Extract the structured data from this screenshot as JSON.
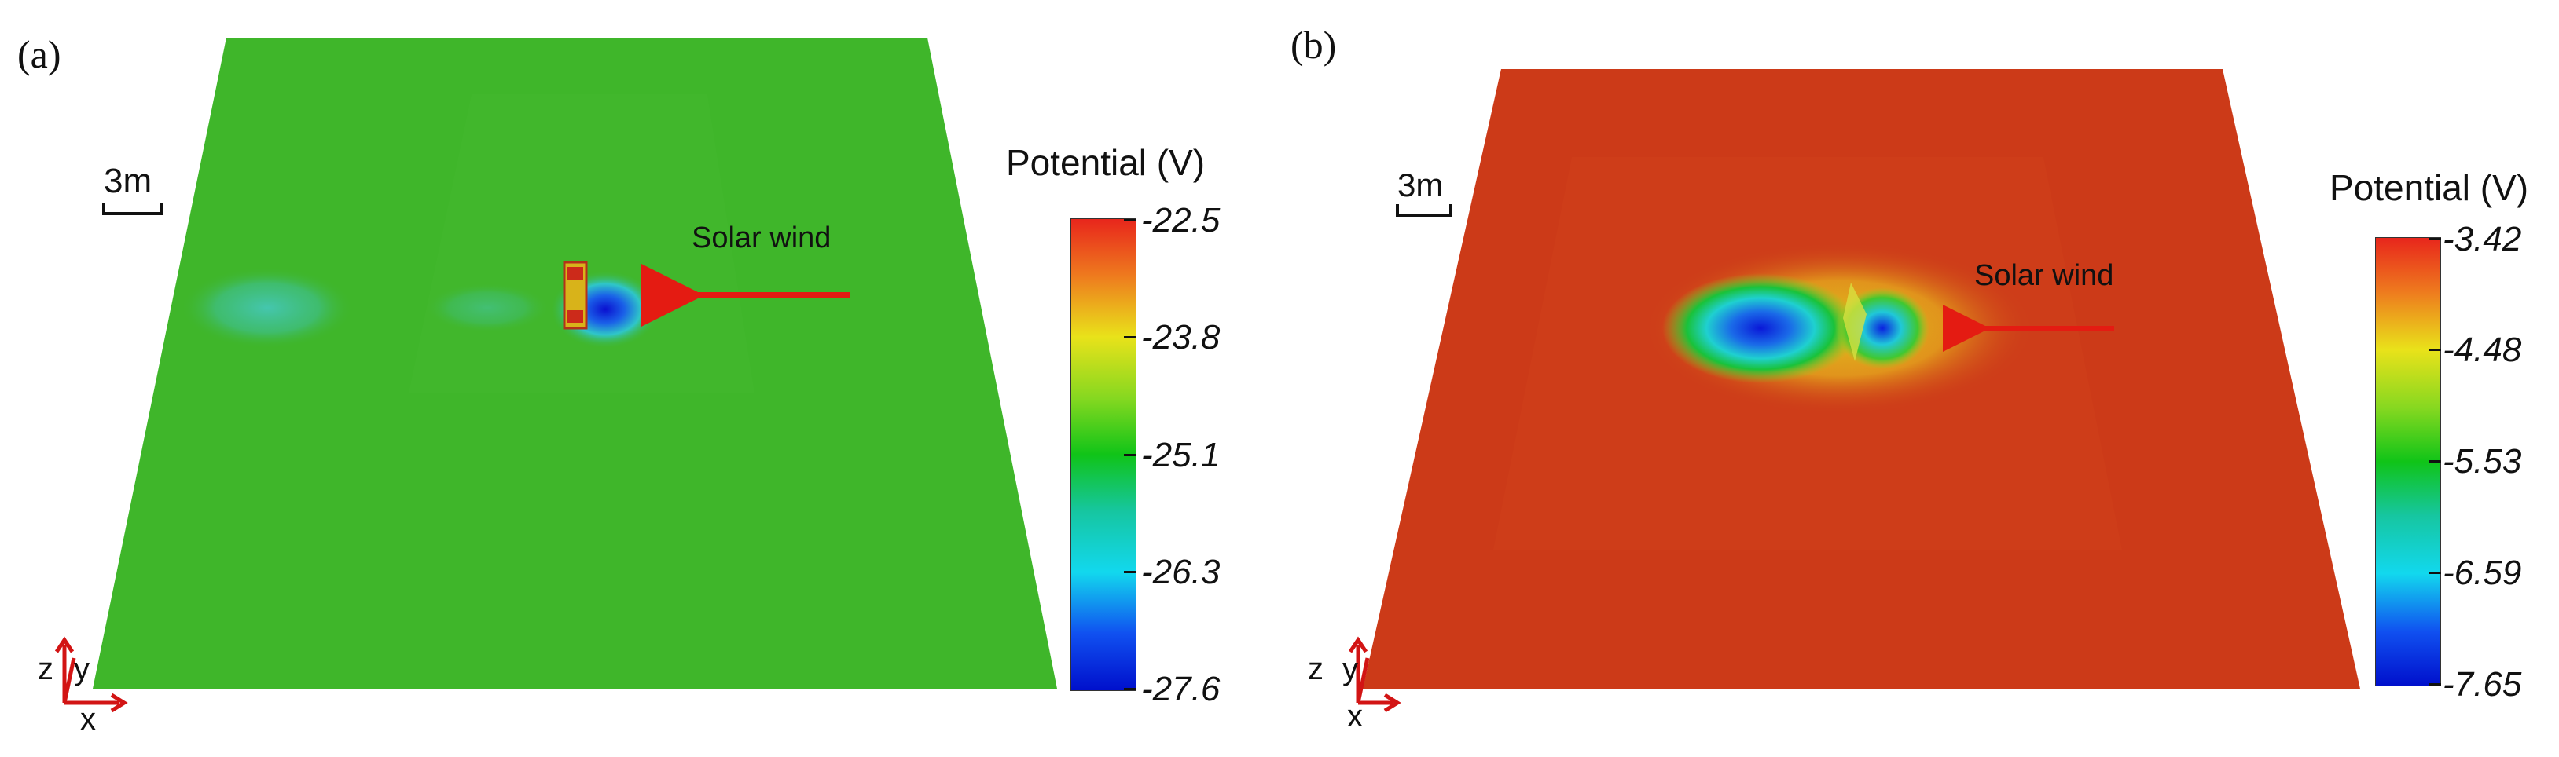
{
  "panels": [
    {
      "label": "(a)",
      "scale_label": "3m",
      "wind_label": "Solar wind",
      "colorbar": {
        "title": "Potential (V)",
        "ticks": [
          "-22.5",
          "-23.8",
          "-25.1",
          "-26.3",
          "-27.6"
        ]
      },
      "axes": {
        "z": "z",
        "y": "y",
        "x": "x"
      }
    },
    {
      "label": "(b)",
      "scale_label": "3m",
      "wind_label": "Solar wind",
      "colorbar": {
        "title": "Potential (V)",
        "ticks": [
          "-3.42",
          "-4.48",
          "-5.53",
          "-6.59",
          "-7.65"
        ]
      },
      "axes": {
        "z": "z",
        "y": "y",
        "x": "x"
      }
    }
  ],
  "colors": {
    "surface_a": "#3fb62a",
    "surface_b": "#cc3a18",
    "arrow": "#e41b12"
  }
}
